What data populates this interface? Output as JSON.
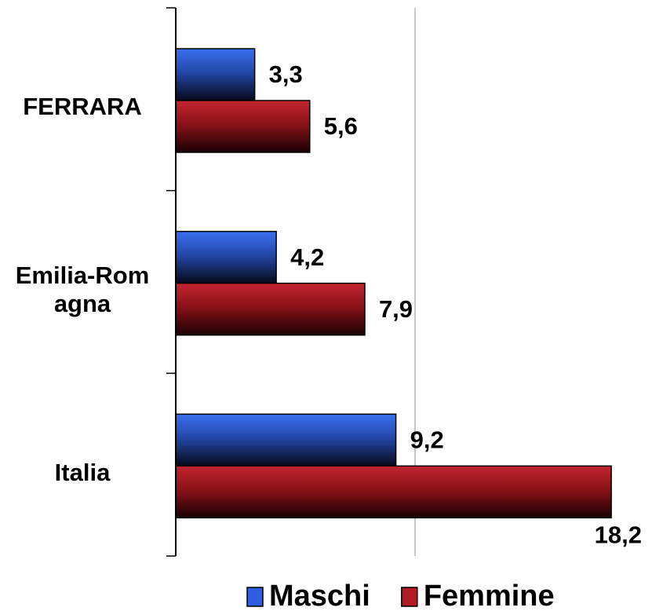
{
  "chart_data": {
    "type": "barh",
    "categories": [
      "FERRARA",
      "Emilia-Romagna",
      "Italia"
    ],
    "series": [
      {
        "name": "Maschi",
        "color": "#2f5fe0",
        "values": [
          3.3,
          4.2,
          9.2
        ],
        "value_labels": [
          "3,3",
          "4,2",
          "9,2"
        ]
      },
      {
        "name": "Femmine",
        "color": "#b01c26",
        "values": [
          5.6,
          7.9,
          18.2
        ],
        "value_labels": [
          "5,6",
          "7,9",
          "18,2"
        ]
      }
    ],
    "xlim": [
      0,
      20
    ],
    "xticks": [
      10
    ],
    "xtick_labels": false,
    "grid": true,
    "legend": "bottom"
  }
}
